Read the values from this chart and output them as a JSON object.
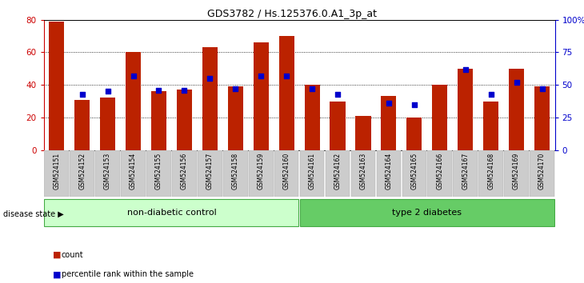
{
  "title": "GDS3782 / Hs.125376.0.A1_3p_at",
  "samples": [
    "GSM524151",
    "GSM524152",
    "GSM524153",
    "GSM524154",
    "GSM524155",
    "GSM524156",
    "GSM524157",
    "GSM524158",
    "GSM524159",
    "GSM524160",
    "GSM524161",
    "GSM524162",
    "GSM524163",
    "GSM524164",
    "GSM524165",
    "GSM524166",
    "GSM524167",
    "GSM524168",
    "GSM524169",
    "GSM524170"
  ],
  "counts": [
    79,
    31,
    32,
    60,
    36,
    37,
    63,
    39,
    66,
    70,
    40,
    30,
    21,
    33,
    20,
    40,
    50,
    30,
    50,
    39
  ],
  "percentiles": [
    null,
    43,
    45,
    57,
    46,
    46,
    55,
    47,
    57,
    57,
    47,
    43,
    null,
    36,
    35,
    null,
    62,
    43,
    52,
    47
  ],
  "group1_label": "non-diabetic control",
  "group2_label": "type 2 diabetes",
  "group1_count": 10,
  "group2_count": 10,
  "disease_state_label": "disease state",
  "bar_color": "#bb2200",
  "dot_color": "#0000cc",
  "ylim_left": [
    0,
    80
  ],
  "ylim_right": [
    0,
    100
  ],
  "yticks_left": [
    0,
    20,
    40,
    60,
    80
  ],
  "ytick_labels_right": [
    "0",
    "25",
    "50",
    "75",
    "100%"
  ],
  "group1_color": "#ccffcc",
  "group2_color": "#66cc66",
  "group_border_color": "#44aa44",
  "axis_color_left": "#cc0000",
  "axis_color_right": "#0000cc",
  "legend_count_label": "count",
  "legend_pct_label": "percentile rank within the sample",
  "tick_bg_color": "#cccccc",
  "tick_border_color": "#aaaaaa"
}
